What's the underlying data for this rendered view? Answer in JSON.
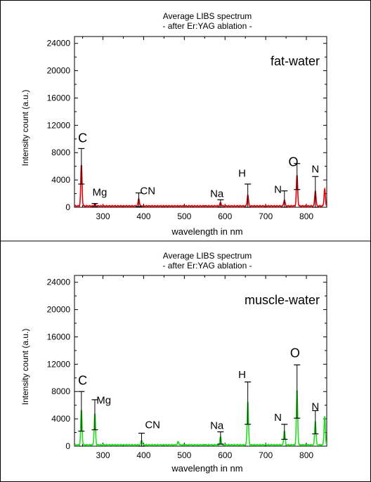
{
  "chart_data": [
    {
      "type": "line",
      "title": "Average LIBS spectrum",
      "subtitle": "- after Er:YAG ablation -",
      "xlabel": "wavelength in nm",
      "ylabel": "Intensity count (a.u.)",
      "sample_label": "fat-water",
      "color": "#e8000b",
      "xlim": [
        230,
        850
      ],
      "ylim": [
        0,
        25000
      ],
      "xticks": [
        300,
        400,
        500,
        600,
        700,
        800
      ],
      "yticks": [
        0,
        4000,
        8000,
        12000,
        16000,
        20000,
        24000
      ],
      "grid": false,
      "peaks": [
        {
          "x": 247,
          "y": 6000,
          "err": 2600
        },
        {
          "x": 280,
          "y": 300,
          "err": 250
        },
        {
          "x": 388,
          "y": 1100,
          "err": 1000
        },
        {
          "x": 589,
          "y": 500,
          "err": 600
        },
        {
          "x": 656,
          "y": 1600,
          "err": 1800
        },
        {
          "x": 746,
          "y": 900,
          "err": 1500
        },
        {
          "x": 777,
          "y": 4500,
          "err": 1900
        },
        {
          "x": 822,
          "y": 2200,
          "err": 2300
        },
        {
          "x": 845,
          "y": 2500,
          "err": 0
        }
      ],
      "annotations": [
        {
          "text": "C",
          "x": 250,
          "y": 9500
        },
        {
          "text": "Mg",
          "x": 292,
          "y": 1700
        },
        {
          "text": "CN",
          "x": 410,
          "y": 1900
        },
        {
          "text": "Na",
          "x": 580,
          "y": 1500
        },
        {
          "text": "H",
          "x": 642,
          "y": 4500
        },
        {
          "text": "N",
          "x": 730,
          "y": 2100
        },
        {
          "text": "O",
          "x": 768,
          "y": 6000
        },
        {
          "text": "N",
          "x": 822,
          "y": 5100
        }
      ]
    },
    {
      "type": "line",
      "title": "Average LIBS spectrum",
      "subtitle": "- after Er:YAG ablation -",
      "xlabel": "wavelength in nm",
      "ylabel": "Intensity count (a.u.)",
      "sample_label": "muscle-water",
      "color": "#22dd22",
      "xlim": [
        230,
        850
      ],
      "ylim": [
        0,
        25000
      ],
      "xticks": [
        300,
        400,
        500,
        600,
        700,
        800
      ],
      "yticks": [
        0,
        4000,
        8000,
        12000,
        16000,
        20000,
        24000
      ],
      "grid": false,
      "peaks": [
        {
          "x": 247,
          "y": 5100,
          "err": 2900
        },
        {
          "x": 280,
          "y": 4600,
          "err": 2200
        },
        {
          "x": 395,
          "y": 700,
          "err": 1200
        },
        {
          "x": 485,
          "y": 500,
          "err": 0
        },
        {
          "x": 589,
          "y": 1200,
          "err": 900
        },
        {
          "x": 656,
          "y": 6300,
          "err": 3100
        },
        {
          "x": 746,
          "y": 2100,
          "err": 1100
        },
        {
          "x": 777,
          "y": 8000,
          "err": 3900
        },
        {
          "x": 822,
          "y": 3500,
          "err": 1700
        },
        {
          "x": 845,
          "y": 4200,
          "err": 0
        }
      ],
      "annotations": [
        {
          "text": "C",
          "x": 250,
          "y": 9000
        },
        {
          "text": "Mg",
          "x": 302,
          "y": 6200
        },
        {
          "text": "CN",
          "x": 422,
          "y": 2600
        },
        {
          "text": "Na",
          "x": 580,
          "y": 2500
        },
        {
          "text": "H",
          "x": 642,
          "y": 10000
        },
        {
          "text": "N",
          "x": 730,
          "y": 3700
        },
        {
          "text": "O",
          "x": 772,
          "y": 13000
        },
        {
          "text": "N",
          "x": 822,
          "y": 5300
        }
      ]
    }
  ]
}
